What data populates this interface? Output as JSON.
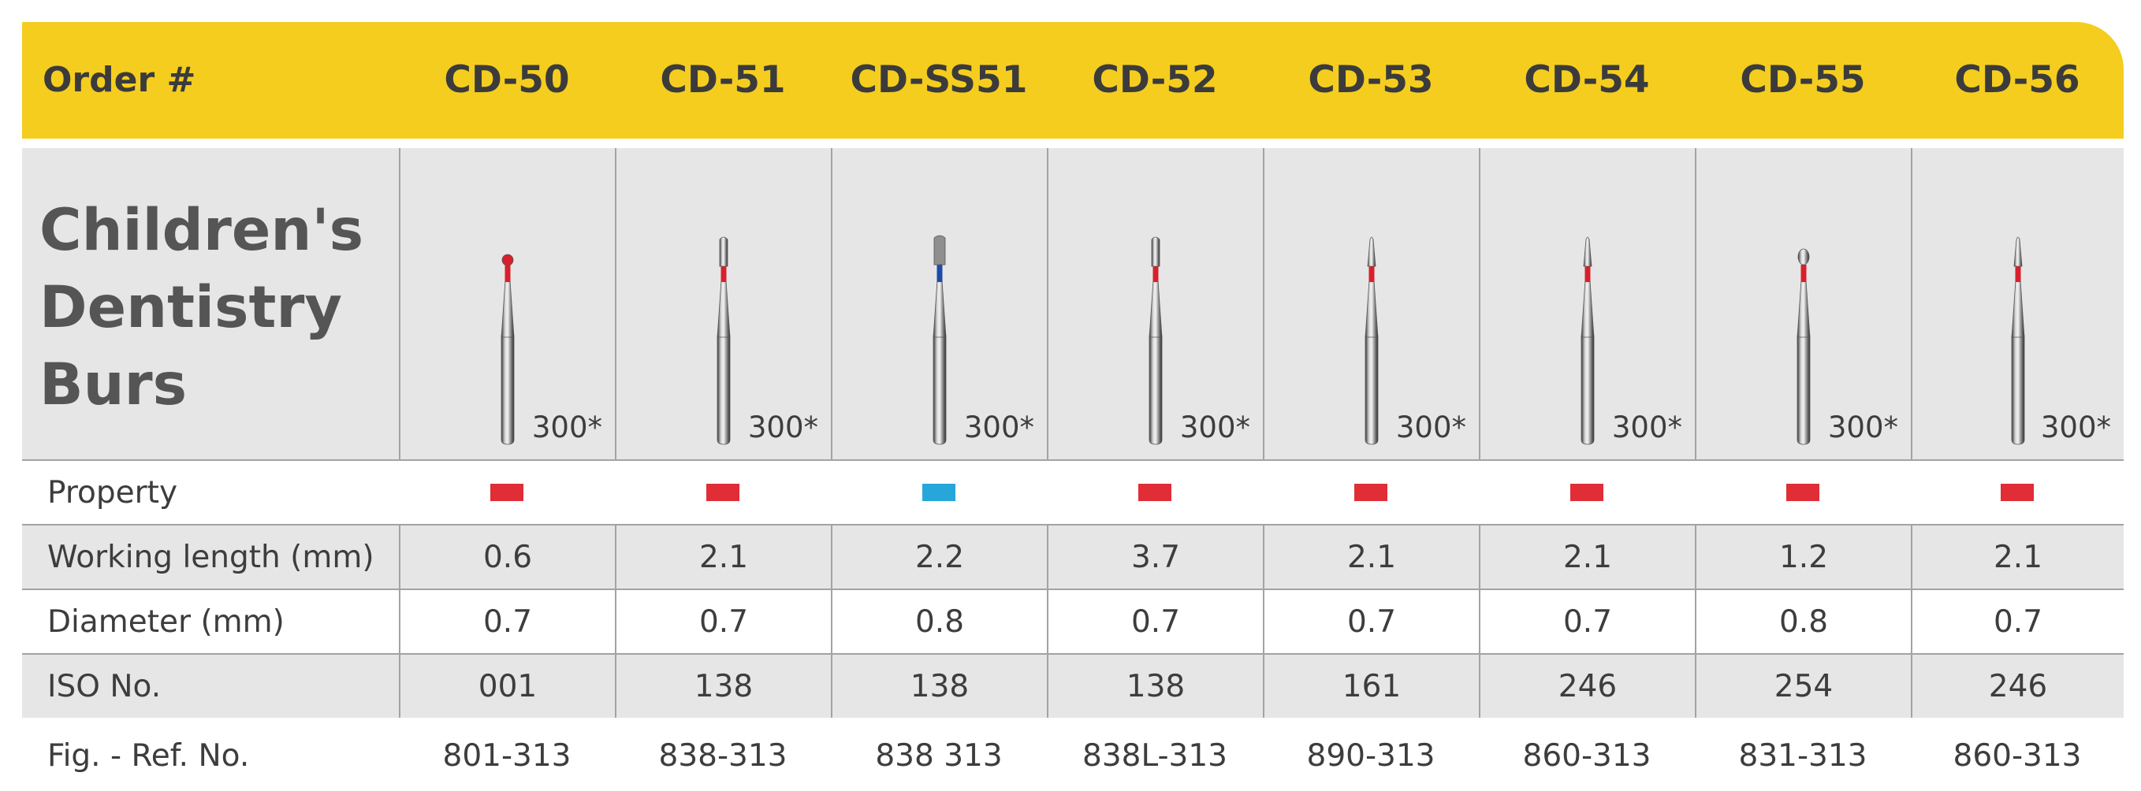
{
  "header": {
    "order_label": "Order #",
    "columns": [
      "CD-50",
      "CD-51",
      "CD-SS51",
      "CD-52",
      "CD-53",
      "CD-54",
      "CD-55",
      "CD-56"
    ]
  },
  "title": {
    "line1": "Children's",
    "line2": "Dentistry",
    "line3": "Burs"
  },
  "images": {
    "speed_labels": [
      "300*",
      "300*",
      "300*",
      "300*",
      "300*",
      "300*",
      "300*",
      "300*"
    ],
    "bur_icons": [
      "round-bur-icon",
      "cylinder-bur-icon",
      "diamond-cylinder-bur-icon",
      "long-cylinder-bur-icon",
      "flame-bur-icon",
      "tapered-bur-icon",
      "bud-bur-icon",
      "tapered-bur-icon"
    ],
    "band_colors": [
      "#d7202b",
      "#d7202b",
      "#1f4aa8",
      "#d7202b",
      "#d7202b",
      "#d7202b",
      "#d7202b",
      "#d7202b"
    ]
  },
  "rows": {
    "property": {
      "label": "Property",
      "swatches": [
        "#e02d36",
        "#e02d36",
        "#27a6d9",
        "#e02d36",
        "#e02d36",
        "#e02d36",
        "#e02d36",
        "#e02d36"
      ]
    },
    "working_length": {
      "label": "Working length (mm)",
      "values": [
        "0.6",
        "2.1",
        "2.2",
        "3.7",
        "2.1",
        "2.1",
        "1.2",
        "2.1"
      ]
    },
    "diameter": {
      "label": "Diameter (mm)",
      "values": [
        "0.7",
        "0.7",
        "0.8",
        "0.7",
        "0.7",
        "0.7",
        "0.8",
        "0.7"
      ]
    },
    "iso": {
      "label": "ISO No.",
      "values": [
        "001",
        "138",
        "138",
        "138",
        "161",
        "246",
        "254",
        "246"
      ]
    },
    "fig_ref": {
      "label": "Fig. - Ref. No.",
      "values": [
        "801-313",
        "838-313",
        "838 313",
        "838L-313",
        "890-313",
        "860-313",
        "831-313",
        "860-313"
      ]
    }
  }
}
